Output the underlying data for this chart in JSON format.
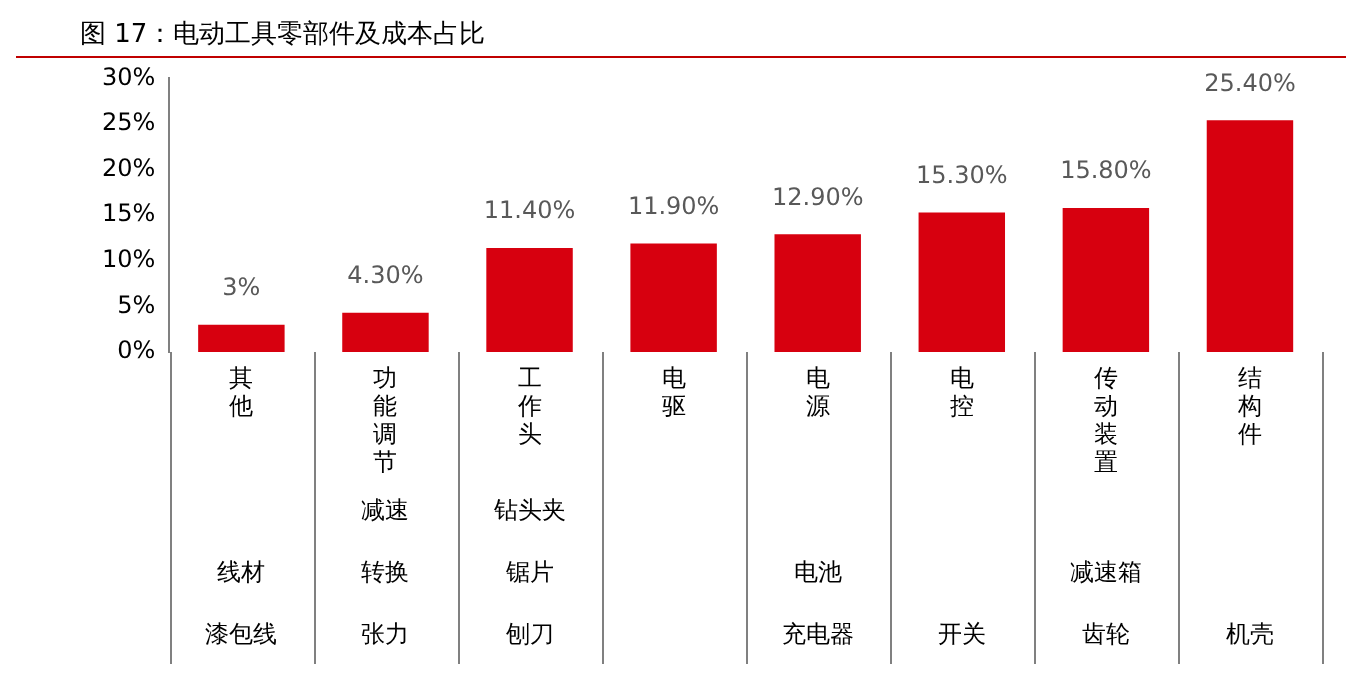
{
  "chart_data": {
    "type": "bar",
    "title": "图 17：电动工具零部件及成本占比",
    "categories": [
      "其他",
      "功能调节",
      "工作头",
      "电驱",
      "电源",
      "电控",
      "传动装置",
      "结构件"
    ],
    "values": [
      3,
      4.3,
      11.4,
      11.9,
      12.9,
      15.3,
      15.8,
      25.4
    ],
    "value_labels": [
      "3%",
      "4.30%",
      "11.40%",
      "11.90%",
      "12.90%",
      "15.30%",
      "15.80%",
      "25.40%"
    ],
    "color": "#d7000f",
    "ylim": [
      0,
      30
    ],
    "yticks": [
      {
        "value": 0,
        "label": "0%"
      },
      {
        "value": 5,
        "label": "5%"
      },
      {
        "value": 10,
        "label": "10%"
      },
      {
        "value": 15,
        "label": "15%"
      },
      {
        "value": 20,
        "label": "20%"
      },
      {
        "value": 25,
        "label": "25%"
      },
      {
        "value": 30,
        "label": "30%"
      }
    ],
    "legend": false,
    "annotations": [
      "线材",
      "漆包线",
      "减速",
      "转换",
      "张力",
      "钻头夹",
      "锯片",
      "刨刀",
      "电池",
      "充电器",
      "开关",
      "减速箱",
      "齿轮",
      "机壳"
    ]
  }
}
